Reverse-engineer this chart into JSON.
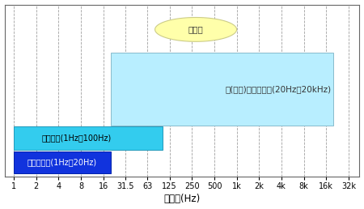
{
  "xtick_values": [
    1,
    2,
    4,
    8,
    16,
    31.5,
    63,
    125,
    250,
    500,
    1000,
    2000,
    4000,
    8000,
    16000,
    32000
  ],
  "xtick_labels": [
    "1",
    "2",
    "4",
    "8",
    "16",
    "31.5",
    "63",
    "125",
    "250",
    "500",
    "1k",
    "2k",
    "4k",
    "8k",
    "16k",
    "32k"
  ],
  "xlabel": "周波数(Hz)",
  "xlim_log": [
    0.75,
    45000
  ],
  "ylim": [
    0,
    1.0
  ],
  "bar_audible": {
    "xmin": 20,
    "xmax": 20000,
    "ymin": 0.3,
    "ymax": 0.72,
    "color": "#b8eeff",
    "label": "人(若者)の可聴範囲(20Hz～20kHz)"
  },
  "bar_low": {
    "xmin": 1,
    "xmax": 100,
    "ymin": 0.155,
    "ymax": 0.295,
    "color": "#33ccee",
    "label": "低周波音(1Hz～100Hz)"
  },
  "bar_infra": {
    "xmin": 1,
    "xmax": 20,
    "ymin": 0.02,
    "ymax": 0.148,
    "color": "#1133dd",
    "label": "超低周波音(1Hz～20Hz)"
  },
  "ellipse": {
    "xcenter_log": 2.45,
    "xhw_log": 0.55,
    "ycenter": 0.855,
    "yhw": 0.07,
    "color": "#ffffaa",
    "edgecolor": "#cccc88",
    "label": "人の声"
  },
  "background_color": "#ffffff",
  "grid_color": "#888888",
  "low_label_color": "#000000",
  "infra_label_color": "#ffffff",
  "audible_label_color": "#333333",
  "label_fontsize": 7.5,
  "tick_fontsize": 7,
  "xlabel_fontsize": 8.5
}
